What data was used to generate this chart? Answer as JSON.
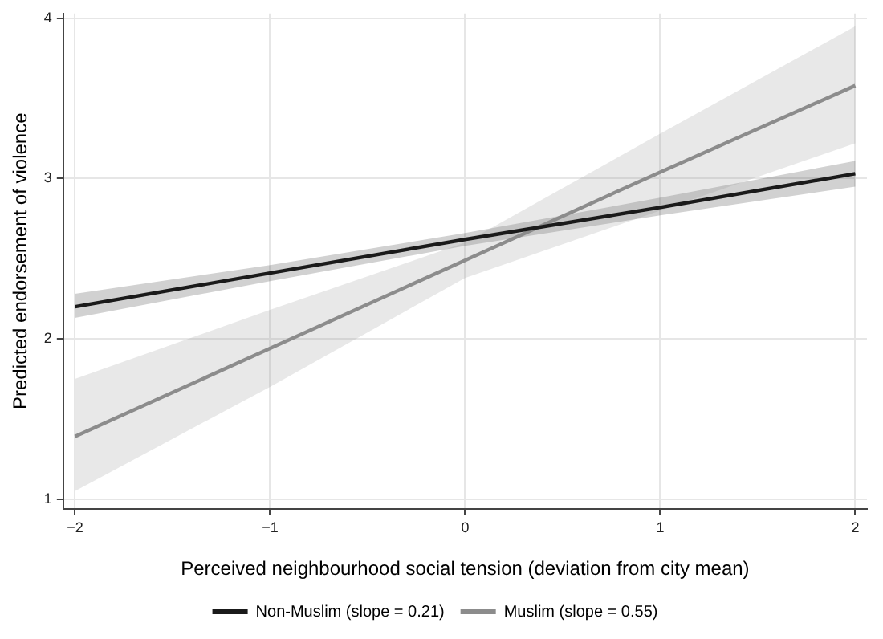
{
  "chart_data": {
    "type": "line",
    "xlabel": "Perceived neighbourhood social tension (deviation from city mean)",
    "ylabel": "Predicted endorsement of violence",
    "x": [
      -2,
      -1,
      0,
      1,
      2
    ],
    "series": [
      {
        "name": "Non-Muslim (slope = 0.21)",
        "color": "#1a1a1a",
        "values": [
          2.2,
          2.41,
          2.62,
          2.82,
          3.03
        ],
        "lower": [
          2.13,
          2.36,
          2.58,
          2.77,
          2.95
        ],
        "upper": [
          2.28,
          2.46,
          2.66,
          2.88,
          3.11
        ]
      },
      {
        "name": "Muslim (slope = 0.55)",
        "color": "#8c8c8c",
        "values": [
          1.39,
          1.94,
          2.49,
          3.04,
          3.58
        ],
        "lower": [
          1.05,
          1.7,
          2.38,
          2.8,
          3.22
        ],
        "upper": [
          1.75,
          2.18,
          2.6,
          3.28,
          3.95
        ]
      }
    ],
    "xlim": [
      -2.06,
      2.06
    ],
    "ylim": [
      0.94,
      4.03
    ],
    "xticks": [
      {
        "value": -2,
        "label": "−2"
      },
      {
        "value": -1,
        "label": "−1"
      },
      0,
      1,
      2
    ],
    "yticks": [
      1,
      2,
      3,
      4
    ],
    "grid": true,
    "legend": "bottom",
    "marker": "none",
    "line_style": "solid"
  }
}
